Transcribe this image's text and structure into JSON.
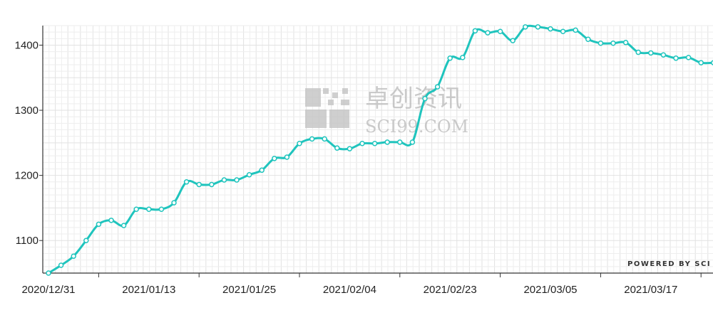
{
  "chart_data": {
    "type": "line",
    "title": "",
    "xlabel": "",
    "ylabel": "",
    "ylim": [
      1050,
      1430
    ],
    "y_ticks": [
      1100,
      1200,
      1300,
      1400
    ],
    "x_tick_labels": [
      {
        "index": 0,
        "label": "2020/12/31"
      },
      {
        "index": 8,
        "label": "2021/01/13"
      },
      {
        "index": 16,
        "label": "2021/01/25"
      },
      {
        "index": 24,
        "label": "2021/02/04"
      },
      {
        "index": 32,
        "label": "2021/02/23"
      },
      {
        "index": 40,
        "label": "2021/03/05"
      },
      {
        "index": 48,
        "label": "2021/03/17"
      }
    ],
    "grid": true,
    "line_color": "#1fc4bd",
    "values": [
      1050,
      1062,
      1076,
      1100,
      1125,
      1131,
      1123,
      1148,
      1148,
      1148,
      1158,
      1190,
      1186,
      1186,
      1193,
      1193,
      1201,
      1208,
      1226,
      1228,
      1249,
      1256,
      1256,
      1242,
      1241,
      1249,
      1249,
      1251,
      1251,
      1251,
      1318,
      1336,
      1380,
      1381,
      1422,
      1419,
      1421,
      1407,
      1428,
      1428,
      1425,
      1421,
      1423,
      1409,
      1403,
      1403,
      1404,
      1389,
      1388,
      1385,
      1380,
      1381,
      1373,
      1373
    ]
  },
  "watermark": {
    "cn": "卓创资讯",
    "en": "SCI99.COM"
  },
  "credit": "POWERED BY SCI"
}
